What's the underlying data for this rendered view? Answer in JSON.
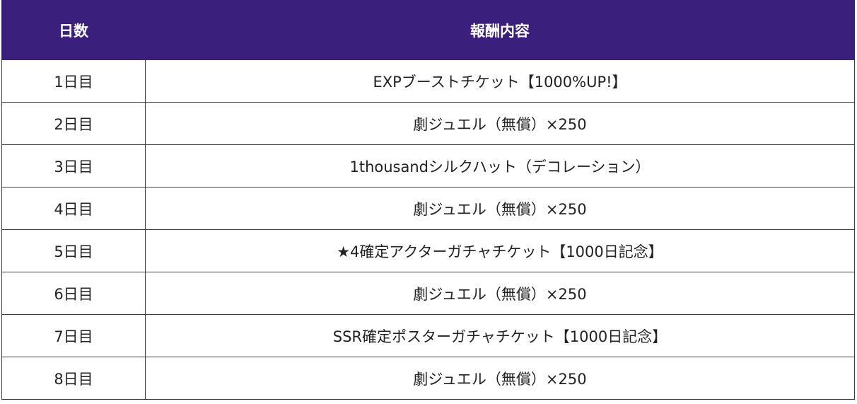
{
  "header": {
    "day_label": "日数",
    "reward_label": "報酬内容"
  },
  "rows": [
    {
      "day": "1日目",
      "reward": "EXPブーストチケット【1000%UP!】"
    },
    {
      "day": "2日目",
      "reward": "劇ジュエル（無償）×250"
    },
    {
      "day": "3日目",
      "reward": "1thousandシルクハット（デコレーション）"
    },
    {
      "day": "4日目",
      "reward": "劇ジュエル（無償）×250"
    },
    {
      "day": "5日目",
      "reward": "★4確定アクターガチャチケット【1000日記念】"
    },
    {
      "day": "6日目",
      "reward": "劇ジュエル（無償）×250"
    },
    {
      "day": "7日目",
      "reward": "SSR確定ポスターガチャチケット【1000日記念】"
    },
    {
      "day": "8日目",
      "reward": "劇ジュエル（無償）×250"
    }
  ],
  "colors": {
    "header_bg": "#3a1f7d",
    "header_text": "#ffffff",
    "border": "#3d3d3d"
  }
}
